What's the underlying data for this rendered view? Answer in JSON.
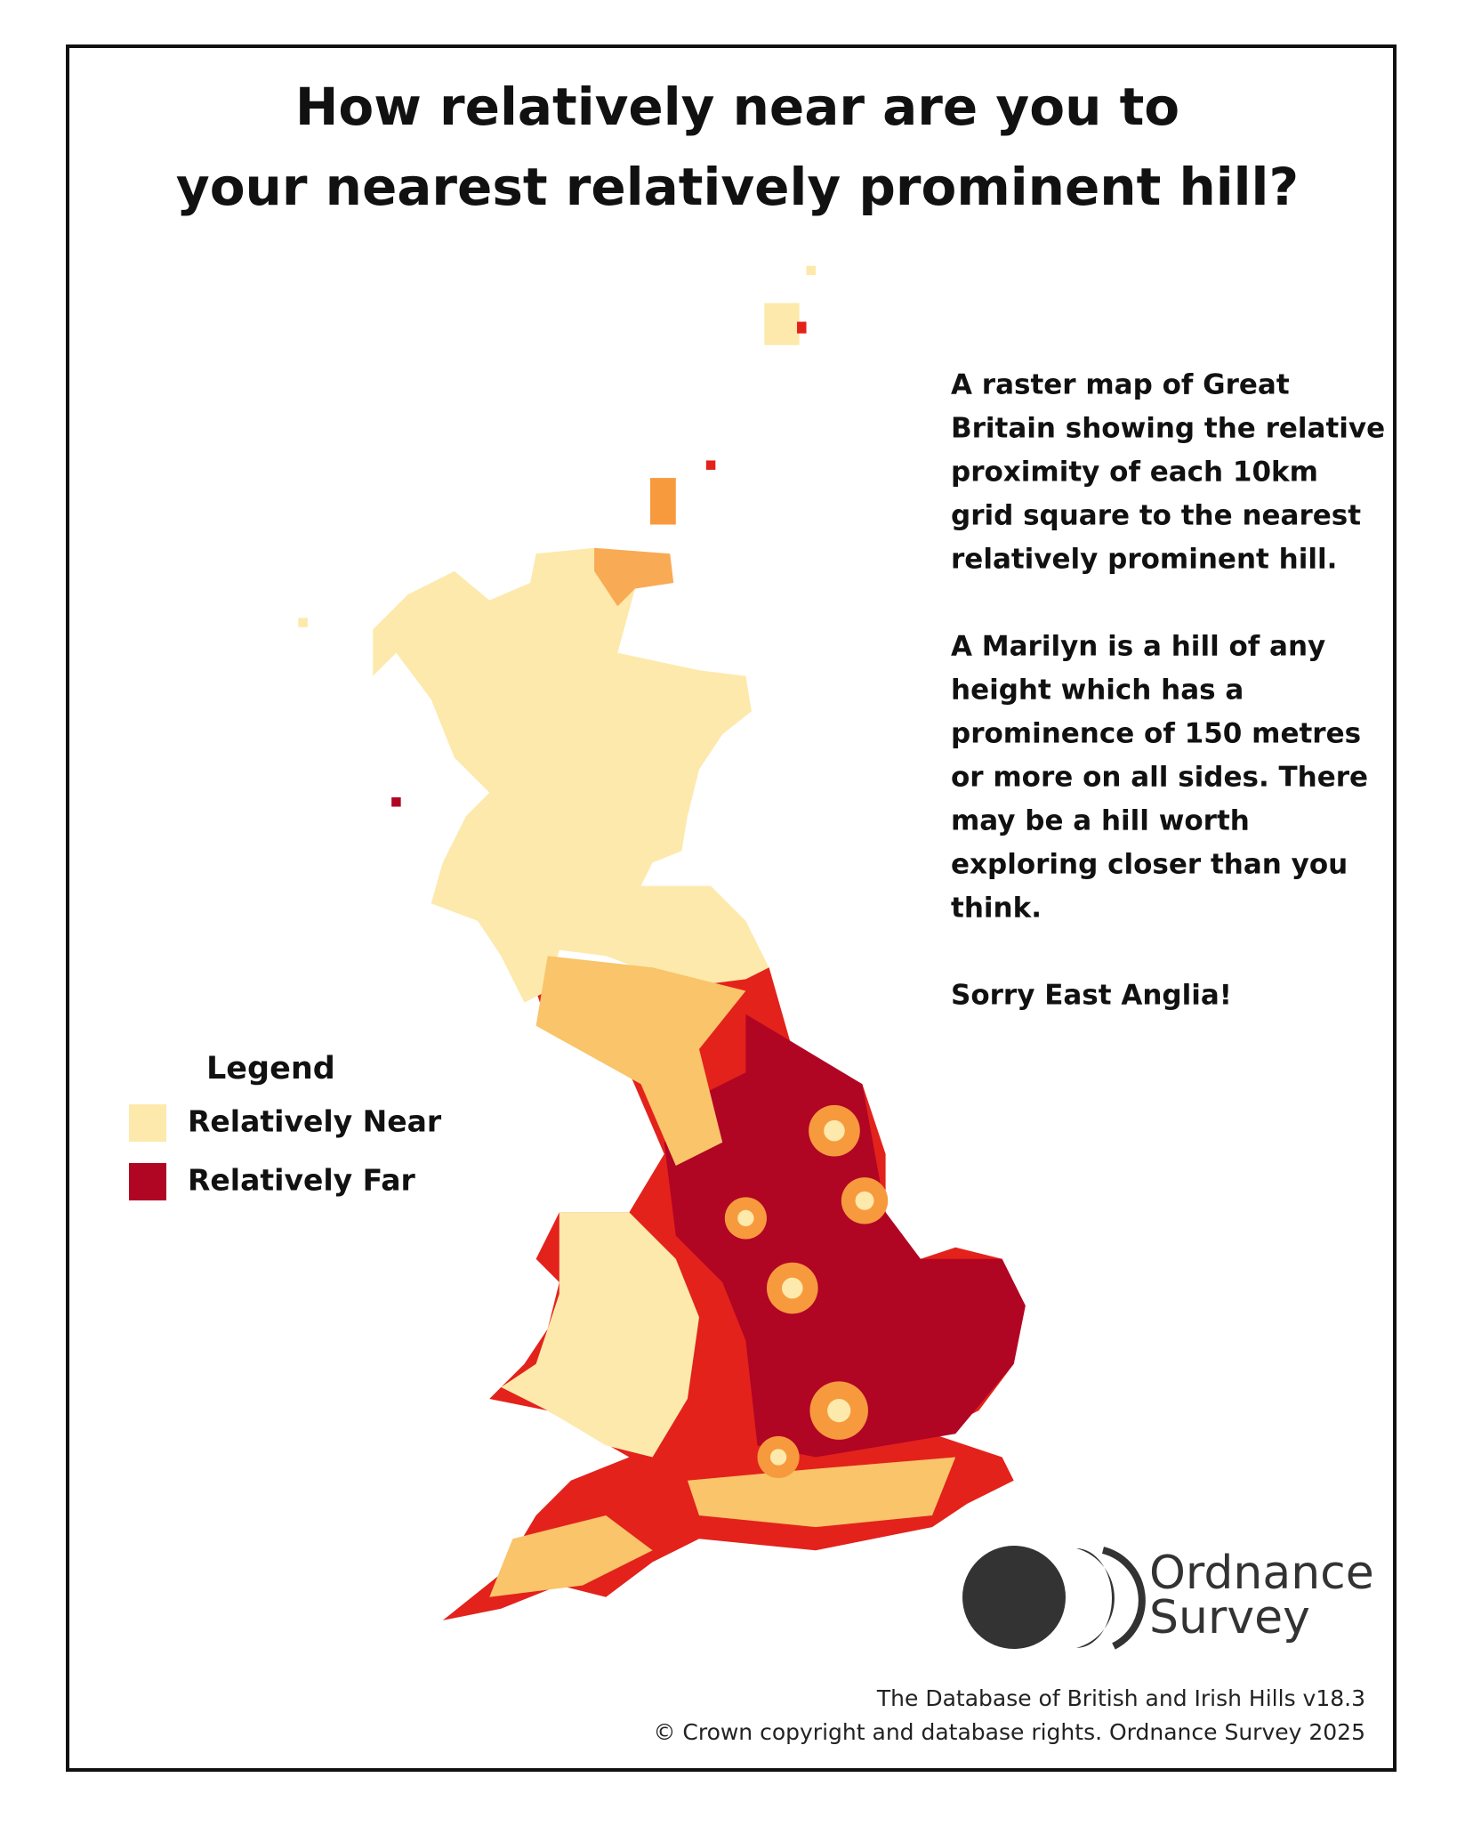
{
  "title": {
    "lines": [
      "How relatively near are you to",
      "your nearest relatively prominent hill?"
    ]
  },
  "description": {
    "paragraphs": [
      [
        "A raster map of Great",
        "Britain showing the relative",
        "proximity of each 10km",
        "grid square to the nearest",
        "relatively prominent hill."
      ],
      [
        "A Marilyn is a hill of any",
        "height which has a",
        "prominence of 150 metres",
        "or more on all sides. There",
        "may be a hill worth",
        "exploring closer than you",
        "think."
      ],
      [
        "Sorry East Anglia!"
      ]
    ]
  },
  "legend": {
    "title": "Legend",
    "items": [
      {
        "label": "Relatively Near",
        "color": "#fde9ab"
      },
      {
        "label": "Relatively Far",
        "color": "#b10524"
      }
    ]
  },
  "logo": {
    "lines": [
      "Ordnance",
      "Survey"
    ]
  },
  "footer": {
    "lines": [
      "The Database of British and Irish Hills v18.3",
      "© Crown copyright and database rights. Ordnance Survey 2025"
    ]
  }
}
